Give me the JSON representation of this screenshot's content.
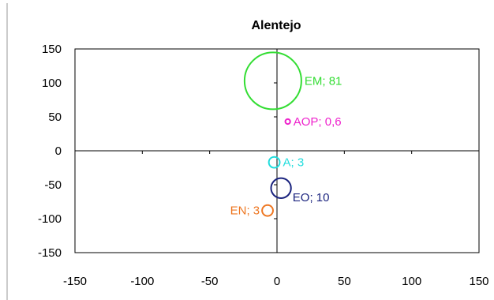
{
  "chart_data": {
    "type": "bubble",
    "title": "Alentejo",
    "xlabel": "",
    "ylabel": "",
    "xlim": [
      -150,
      150
    ],
    "ylim": [
      -150,
      150
    ],
    "xticks": [
      "-150",
      "-100",
      "-50",
      "0",
      "50",
      "100",
      "150"
    ],
    "yticks": [
      "150",
      "100",
      "50",
      "0",
      "-50",
      "-100",
      "-150"
    ],
    "grid": false,
    "legend": "none",
    "series": [
      {
        "label": "EM; 81",
        "x": -3,
        "y": 103,
        "size": 81,
        "color": "#33dd33"
      },
      {
        "label": "AOP; 0,6",
        "x": 8,
        "y": 43,
        "size": 0.6,
        "color": "#ee22cc"
      },
      {
        "label": "A; 3",
        "x": -2,
        "y": -17,
        "size": 3,
        "color": "#22dddd"
      },
      {
        "label": "EO; 10",
        "x": 3,
        "y": -55,
        "size": 10,
        "color": "#1a237e"
      },
      {
        "label": "EN; 3",
        "x": -7,
        "y": -88,
        "size": 3,
        "color": "#ee7722"
      }
    ]
  }
}
